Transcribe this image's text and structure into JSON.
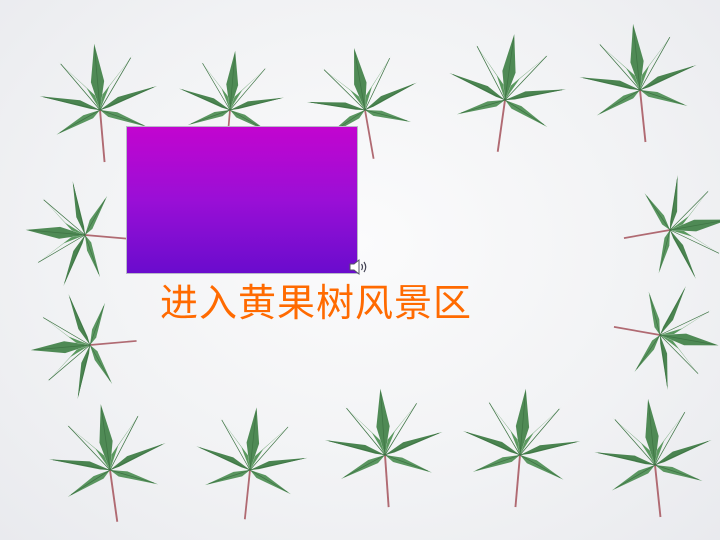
{
  "slide": {
    "link_text": "进入黄果树风景区",
    "link_color": "#ff6a00",
    "media_gradient": [
      "#c205cf",
      "#6a0ccd"
    ],
    "sound_icon": "speaker-icon",
    "decor_icon": "maple-leaf-icon",
    "leaf_color": "#4f8a55"
  }
}
